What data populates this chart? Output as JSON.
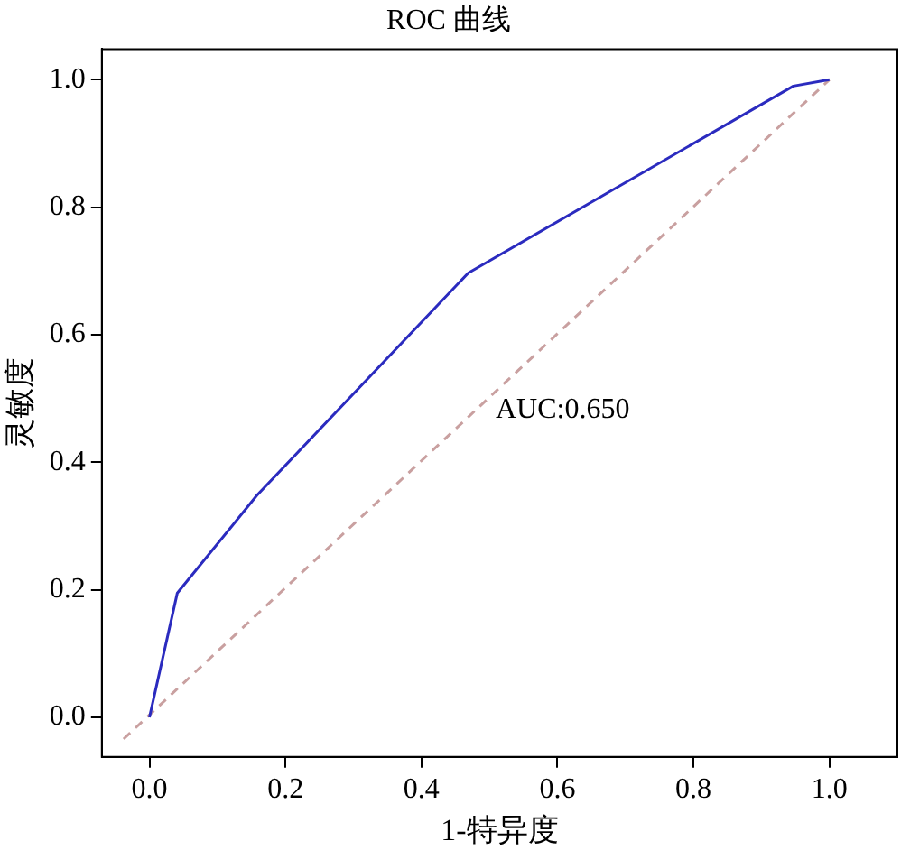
{
  "chart_data": {
    "type": "line",
    "title": "ROC 曲线",
    "xlabel": "1-特异度",
    "ylabel": "灵敏度",
    "xlim": [
      -0.07,
      1.1
    ],
    "ylim": [
      -0.062,
      1.048
    ],
    "xticks": [
      {
        "value": 0,
        "label": "0.0"
      },
      {
        "value": 0.2,
        "label": "0.2"
      },
      {
        "value": 0.4,
        "label": "0.4"
      },
      {
        "value": 0.6,
        "label": "0.6"
      },
      {
        "value": 0.8,
        "label": "0.8"
      },
      {
        "value": 1,
        "label": "1.0"
      }
    ],
    "yticks": [
      {
        "value": 0,
        "label": "0.0"
      },
      {
        "value": 0.2,
        "label": "0.2"
      },
      {
        "value": 0.4,
        "label": "0.4"
      },
      {
        "value": 0.6,
        "label": "0.6"
      },
      {
        "value": 0.8,
        "label": "0.8"
      },
      {
        "value": 1,
        "label": "1.0"
      }
    ],
    "grid": false,
    "legend": false,
    "marker": "none",
    "line_style": "solid",
    "series": [
      {
        "color": "#2b2bbf",
        "x": [
          0,
          0.041,
          0.158,
          0.469,
          0.947,
          1
        ],
        "values": [
          0,
          0.195,
          0.348,
          0.697,
          0.99,
          1
        ]
      },
      {
        "color": "#c9a0a0",
        "line_style": "dashed",
        "x": [
          -0.038,
          1
        ],
        "values": [
          -0.034,
          1
        ]
      }
    ],
    "annotations": [
      "AUC:0.650"
    ]
  }
}
